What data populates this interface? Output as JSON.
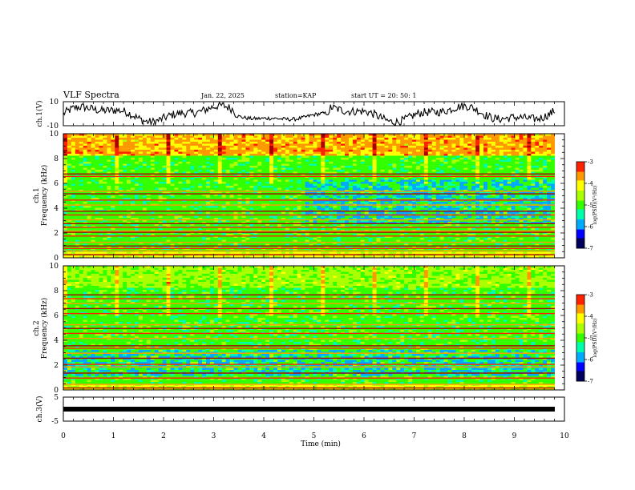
{
  "header": {
    "title": "VLF Spectra",
    "date": "Jan. 22, 2025",
    "station": "station=KAP",
    "start": "start  UT =  20: 50: 1"
  },
  "colors": {
    "accent": "#000000",
    "colormap": [
      "#00005a",
      "#0000ff",
      "#00aaff",
      "#00ffaa",
      "#33ff00",
      "#aaff00",
      "#ffff00",
      "#ff9900",
      "#ff2200",
      "#aa0000",
      "#ffffff"
    ]
  },
  "chart_data": [
    {
      "type": "line",
      "name": "ch1-time-series",
      "ylabel": "ch.1(V)",
      "ylim": [
        -10,
        10
      ],
      "yticks": [
        "10",
        "-10"
      ],
      "xlim": [
        0,
        10
      ],
      "description_values": "voltage waveform fluctuating roughly between -9 V and 9 V over 10 minutes"
    },
    {
      "type": "heatmap",
      "name": "ch1-spectrogram",
      "ylabel": "ch.1\nFrequency (kHz)",
      "ylim": [
        0,
        10
      ],
      "yticks": [
        "0",
        "2",
        "4",
        "6",
        "8",
        "10"
      ],
      "xlim": [
        0,
        9.8
      ],
      "colorbar": {
        "label": "log(PSD)(V²/Hz)",
        "range": [
          -7,
          -3
        ],
        "ticks": [
          "-3",
          "-4",
          "-5",
          "-6",
          "-7"
        ]
      },
      "dominant_log_psd": -5,
      "bands_khz": [
        0.3,
        0.6,
        0.8,
        1.0,
        1.3,
        1.8,
        2.1,
        2.2,
        2.5,
        2.8,
        3.1,
        3.5,
        3.8,
        4.3,
        4.7,
        5.2,
        5.4,
        6.6,
        6.8
      ]
    },
    {
      "type": "heatmap",
      "name": "ch2-spectrogram",
      "ylabel": "ch.2\nFrequency (kHz)",
      "ylim": [
        0,
        10
      ],
      "yticks": [
        "0",
        "2",
        "4",
        "6",
        "8",
        "10"
      ],
      "xlim": [
        0,
        9.8
      ],
      "colorbar": {
        "label": "log(PSD)(V²/Hz)",
        "range": [
          -7,
          -3
        ],
        "ticks": [
          "-3",
          "-4",
          "-5",
          "-6",
          "-7"
        ]
      },
      "dominant_log_psd": -5,
      "bands_khz": [
        0.2,
        0.5,
        1.0,
        1.4,
        1.9,
        2.1,
        2.6,
        3.0,
        3.4,
        3.6,
        4.2,
        4.6,
        5.0,
        5.3,
        6.2,
        6.6,
        7.0,
        7.4,
        7.7
      ]
    },
    {
      "type": "line",
      "name": "ch3-time-series",
      "ylabel": "ch.3(V)",
      "ylim": [
        -5,
        5
      ],
      "yticks": [
        "5",
        "-5"
      ],
      "xlim": [
        0,
        10
      ],
      "value": 0,
      "xlabel": "Time (min)",
      "xticks": [
        "0",
        "1",
        "2",
        "3",
        "4",
        "5",
        "6",
        "7",
        "8",
        "9",
        "10"
      ]
    }
  ]
}
